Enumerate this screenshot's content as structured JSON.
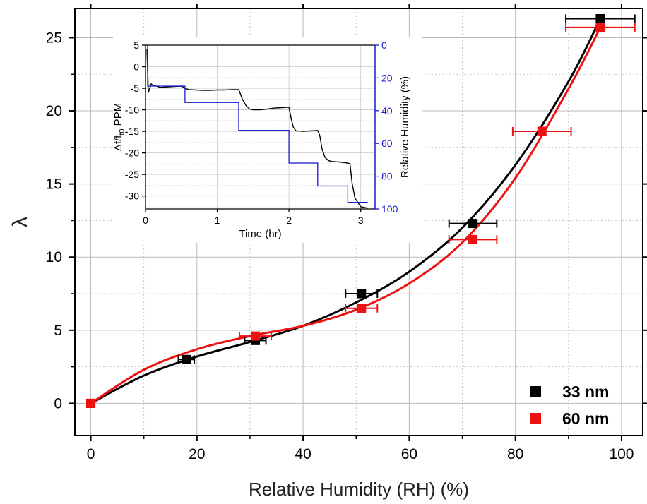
{
  "chart_data": [
    {
      "type": "scatter",
      "xlabel": "Relative Humidity (RH) (%)",
      "ylabel": "λ",
      "xlim": [
        -3,
        104
      ],
      "ylim": [
        -2.2,
        27
      ],
      "x_ticks": [
        "0",
        "20",
        "40",
        "60",
        "80",
        "100"
      ],
      "y_ticks": [
        "0",
        "5",
        "10",
        "15",
        "20",
        "25"
      ],
      "grid": true,
      "legend_position": "bottom-right",
      "series": [
        {
          "name": "33 nm",
          "color": "#000000",
          "points": [
            {
              "x": 0,
              "y": 0,
              "xerr": 0
            },
            {
              "x": 18,
              "y": 3.0,
              "xerr": 1.5
            },
            {
              "x": 31,
              "y": 4.3,
              "xerr": 2.0
            },
            {
              "x": 51,
              "y": 7.5,
              "xerr": 3.0
            },
            {
              "x": 72,
              "y": 12.3,
              "xerr": 4.5
            },
            {
              "x": 96,
              "y": 26.3,
              "xerr": 6.5
            }
          ],
          "fit_curve": [
            [
              0,
              0
            ],
            [
              10,
              1.9
            ],
            [
              20,
              3.2
            ],
            [
              30,
              4.2
            ],
            [
              40,
              5.3
            ],
            [
              50,
              6.9
            ],
            [
              60,
              9.0
            ],
            [
              70,
              12.0
            ],
            [
              80,
              16.3
            ],
            [
              90,
              22.0
            ],
            [
              96,
              26.3
            ]
          ]
        },
        {
          "name": "60 nm",
          "color": "#ee1111",
          "points": [
            {
              "x": 0,
              "y": 0,
              "xerr": 0
            },
            {
              "x": 31,
              "y": 4.6,
              "xerr": 3.0
            },
            {
              "x": 51,
              "y": 6.5,
              "xerr": 3.0
            },
            {
              "x": 72,
              "y": 11.2,
              "xerr": 4.5
            },
            {
              "x": 85,
              "y": 18.6,
              "xerr": 5.5
            },
            {
              "x": 96,
              "y": 25.7,
              "xerr": 6.5
            }
          ],
          "fit_curve": [
            [
              0,
              0
            ],
            [
              10,
              2.3
            ],
            [
              20,
              3.7
            ],
            [
              30,
              4.6
            ],
            [
              40,
              5.3
            ],
            [
              50,
              6.4
            ],
            [
              60,
              8.2
            ],
            [
              70,
              11.0
            ],
            [
              80,
              15.4
            ],
            [
              90,
              21.5
            ],
            [
              96,
              25.7
            ]
          ]
        }
      ]
    },
    {
      "type": "line",
      "xlabel": "Time (hr)",
      "ylabel": "Δf/f",
      "ylabel_sub": "t0",
      "ylabel_suffix": " PPM",
      "y2label": "Relative Humidity (%)",
      "xlim": [
        0,
        3.2
      ],
      "ylim": [
        -33,
        5
      ],
      "y2lim": [
        0,
        100
      ],
      "x_ticks": [
        "0",
        "1",
        "2",
        "3"
      ],
      "y_ticks": [
        "5",
        "0",
        "-5",
        "-10",
        "-15",
        "-20",
        "-25",
        "-30"
      ],
      "y2_ticks": [
        "0",
        "20",
        "40",
        "60",
        "80",
        "100"
      ],
      "grid": true,
      "series": [
        {
          "name": "Δf/f",
          "axis": "left",
          "color": "#000000",
          "points": [
            [
              0.02,
              4
            ],
            [
              0.04,
              -6
            ],
            [
              0.06,
              -5
            ],
            [
              0.08,
              -4
            ],
            [
              0.1,
              -4.3
            ],
            [
              0.15,
              -4.5
            ],
            [
              0.2,
              -4.8
            ],
            [
              0.3,
              -4.7
            ],
            [
              0.4,
              -4.6
            ],
            [
              0.5,
              -4.5
            ],
            [
              0.55,
              -5.0
            ],
            [
              0.6,
              -5.3
            ],
            [
              0.7,
              -5.4
            ],
            [
              0.8,
              -5.5
            ],
            [
              0.9,
              -5.5
            ],
            [
              1.0,
              -5.4
            ],
            [
              1.1,
              -5.4
            ],
            [
              1.2,
              -5.3
            ],
            [
              1.3,
              -5.3
            ],
            [
              1.35,
              -7.5
            ],
            [
              1.4,
              -9.0
            ],
            [
              1.45,
              -9.8
            ],
            [
              1.5,
              -10.0
            ],
            [
              1.6,
              -10.0
            ],
            [
              1.7,
              -9.8
            ],
            [
              1.8,
              -9.6
            ],
            [
              1.9,
              -9.5
            ],
            [
              2.0,
              -9.4
            ],
            [
              2.03,
              -12.0
            ],
            [
              2.06,
              -14.0
            ],
            [
              2.1,
              -14.9
            ],
            [
              2.2,
              -15.0
            ],
            [
              2.3,
              -14.9
            ],
            [
              2.4,
              -14.8
            ],
            [
              2.43,
              -16.0
            ],
            [
              2.46,
              -19.0
            ],
            [
              2.5,
              -21.0
            ],
            [
              2.55,
              -21.8
            ],
            [
              2.6,
              -22.0
            ],
            [
              2.7,
              -22.1
            ],
            [
              2.8,
              -22.3
            ],
            [
              2.85,
              -22.5
            ],
            [
              2.88,
              -27.0
            ],
            [
              2.92,
              -30.5
            ],
            [
              2.96,
              -31.5
            ],
            [
              3.0,
              -32.5
            ],
            [
              3.1,
              -32.8
            ]
          ]
        },
        {
          "name": "Relative Humidity (%)",
          "axis": "right",
          "color": "#1a1acc",
          "points": [
            [
              0.03,
              0
            ],
            [
              0.03,
              25
            ],
            [
              0.55,
              25
            ],
            [
              0.55,
              35
            ],
            [
              1.3,
              35
            ],
            [
              1.3,
              52
            ],
            [
              2.0,
              52
            ],
            [
              2.0,
              72
            ],
            [
              2.4,
              72
            ],
            [
              2.4,
              86
            ],
            [
              2.82,
              86
            ],
            [
              2.82,
              96
            ],
            [
              3.1,
              96
            ]
          ]
        }
      ]
    }
  ]
}
